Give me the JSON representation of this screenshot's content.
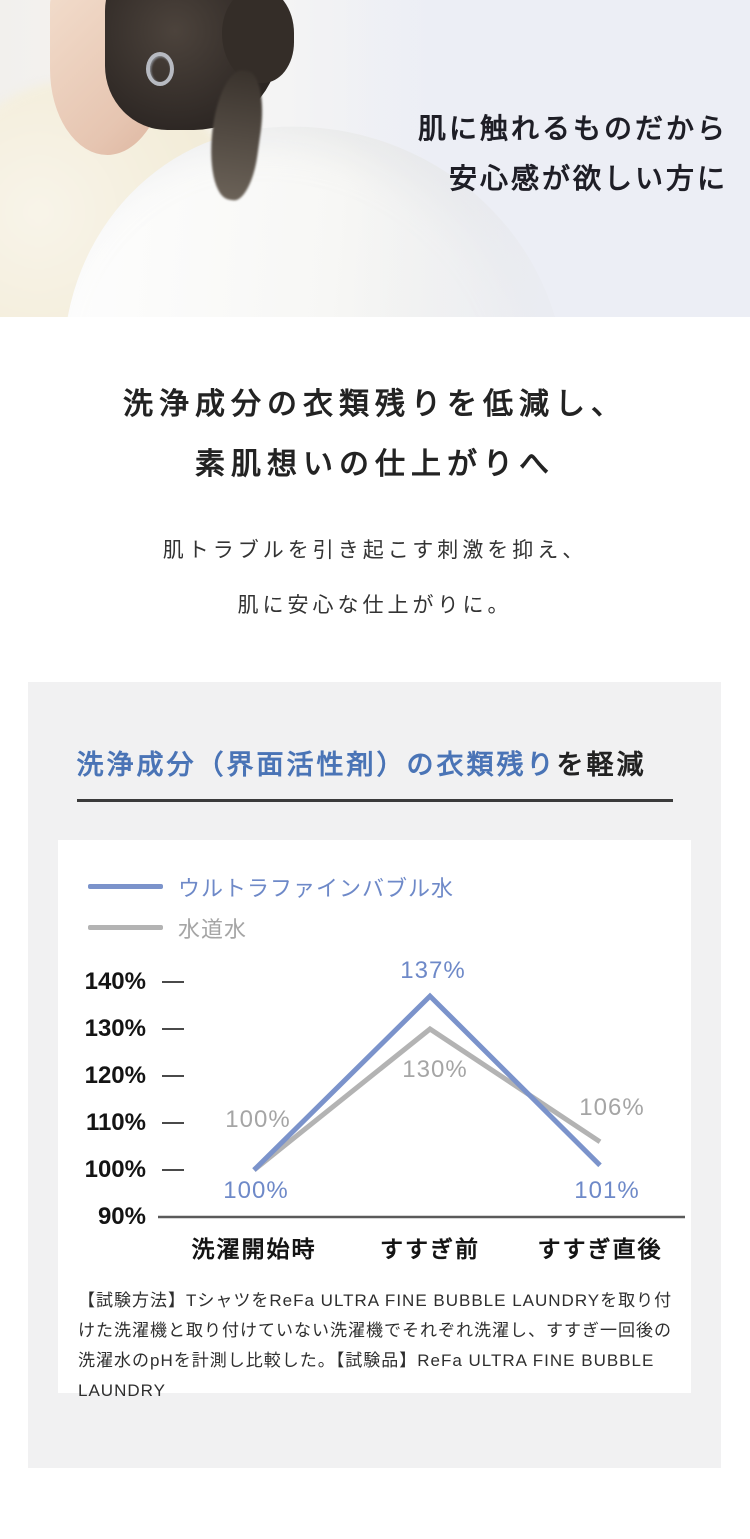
{
  "hero": {
    "tagline_line1": "肌に触れるものだから",
    "tagline_line2": "安心感が欲しい方に"
  },
  "intro": {
    "heading_line1": "洗浄成分の衣類残りを低減し、",
    "heading_line2": "素肌想いの仕上がりへ",
    "body_line1": "肌トラブルを引き起こす刺激を抑え、",
    "body_line2": "肌に安心な仕上がりに。"
  },
  "card": {
    "title_highlight": "洗浄成分（界面活性剤）の衣類残り",
    "title_rest": "を軽減",
    "footnote": "【試験方法】TシャツをReFa ULTRA FINE BUBBLE LAUNDRYを取り付けた洗濯機と取り付けていない洗濯機でそれぞれ洗濯し、すすぎ一回後の洗濯水のpHを計測し比較した。【試験品】ReFa ULTRA FINE BUBBLE LAUNDRY"
  },
  "chart_data": {
    "type": "line",
    "title": "洗浄成分（界面活性剤）の衣類残りを軽減",
    "categories": [
      "洗濯開始時",
      "すすぎ前",
      "すすぎ直後"
    ],
    "series": [
      {
        "name": "ウルトラファインバブル水",
        "values": [
          100,
          137,
          101
        ],
        "color": "#7b93cb",
        "label_color": "#6e89c8"
      },
      {
        "name": "水道水",
        "values": [
          100,
          130,
          106
        ],
        "color": "#b3b3b3",
        "label_color": "#a5a5a5"
      }
    ],
    "yticks": [
      140,
      130,
      120,
      110,
      100,
      90
    ],
    "ytick_suffix": "%",
    "value_suffix": "%",
    "ylim": [
      90,
      145
    ],
    "xlabel": "",
    "ylabel": "",
    "legend_position": "top-left",
    "grid": false
  },
  "colors": {
    "accent_blue": "#4a74b6",
    "line_blue": "#7b93cb",
    "line_gray": "#b3b3b3",
    "axis": "#5a5a5a",
    "card_bg": "#f1f1f2",
    "hero_bg": "#eceef5",
    "text_dark": "#1e1e26"
  }
}
